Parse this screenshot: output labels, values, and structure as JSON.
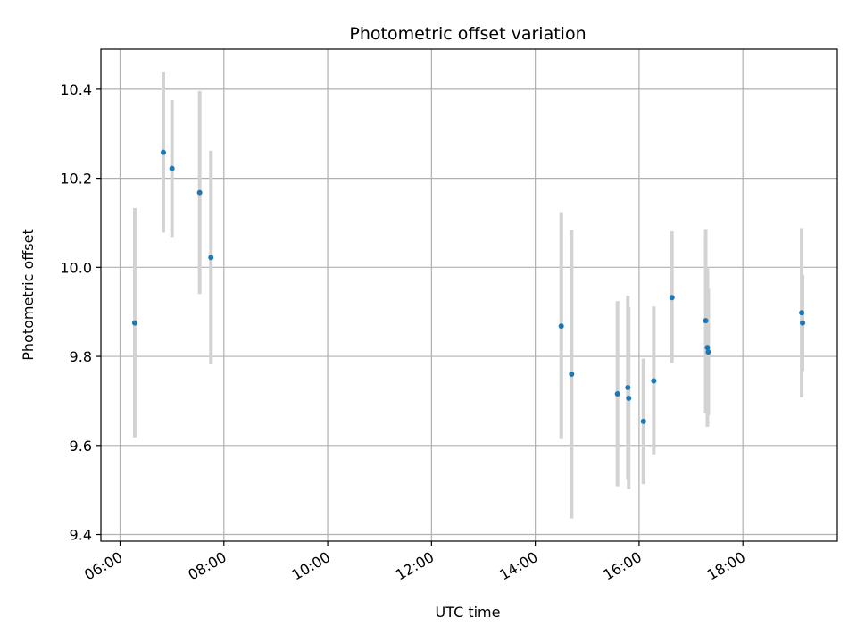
{
  "chart_data": {
    "type": "scatter",
    "title": "Photometric offset variation",
    "xlabel": "UTC time",
    "ylabel": "Photometric offset",
    "x_unit": "hours",
    "xlim": [
      5.63,
      19.82
    ],
    "ylim": [
      9.385,
      10.49
    ],
    "x_ticks": [
      {
        "value": 6,
        "label": "06:00"
      },
      {
        "value": 8,
        "label": "08:00"
      },
      {
        "value": 10,
        "label": "10:00"
      },
      {
        "value": 12,
        "label": "12:00"
      },
      {
        "value": 14,
        "label": "14:00"
      },
      {
        "value": 16,
        "label": "16:00"
      },
      {
        "value": 18,
        "label": "18:00"
      }
    ],
    "y_ticks": [
      {
        "value": 9.4,
        "label": "9.4"
      },
      {
        "value": 9.6,
        "label": "9.6"
      },
      {
        "value": 9.8,
        "label": "9.8"
      },
      {
        "value": 10.0,
        "label": "10.0"
      },
      {
        "value": 10.2,
        "label": "10.2"
      },
      {
        "value": 10.4,
        "label": "10.4"
      }
    ],
    "grid": true,
    "marker_color": "#1f77b4",
    "errorbar_color": "#d3d3d3",
    "points": [
      {
        "x": "06:17",
        "y": 9.875,
        "err_low": 9.618,
        "err_high": 10.133
      },
      {
        "x": "06:50",
        "y": 10.258,
        "err_low": 10.078,
        "err_high": 10.438
      },
      {
        "x": "07:00",
        "y": 10.222,
        "err_low": 10.068,
        "err_high": 10.376
      },
      {
        "x": "07:32",
        "y": 10.168,
        "err_low": 9.94,
        "err_high": 10.396
      },
      {
        "x": "07:45",
        "y": 10.022,
        "err_low": 9.782,
        "err_high": 10.262
      },
      {
        "x": "14:30",
        "y": 9.868,
        "err_low": 9.614,
        "err_high": 10.124
      },
      {
        "x": "14:42",
        "y": 9.76,
        "err_low": 9.436,
        "err_high": 10.084
      },
      {
        "x": "15:35",
        "y": 9.716,
        "err_low": 9.508,
        "err_high": 9.924
      },
      {
        "x": "15:47",
        "y": 9.73,
        "err_low": 9.524,
        "err_high": 9.936
      },
      {
        "x": "15:48",
        "y": 9.706,
        "err_low": 9.502,
        "err_high": 9.91
      },
      {
        "x": "16:05",
        "y": 9.654,
        "err_low": 9.513,
        "err_high": 9.795
      },
      {
        "x": "16:17",
        "y": 9.745,
        "err_low": 9.58,
        "err_high": 9.912
      },
      {
        "x": "16:38",
        "y": 9.932,
        "err_low": 9.785,
        "err_high": 10.081
      },
      {
        "x": "17:17",
        "y": 9.88,
        "err_low": 9.672,
        "err_high": 10.086
      },
      {
        "x": "17:19",
        "y": 9.82,
        "err_low": 9.642,
        "err_high": 9.998
      },
      {
        "x": "17:20",
        "y": 9.81,
        "err_low": 9.668,
        "err_high": 9.952
      },
      {
        "x": "19:08",
        "y": 9.898,
        "err_low": 9.708,
        "err_high": 10.088
      },
      {
        "x": "19:09",
        "y": 9.875,
        "err_low": 9.768,
        "err_high": 9.982
      }
    ]
  }
}
